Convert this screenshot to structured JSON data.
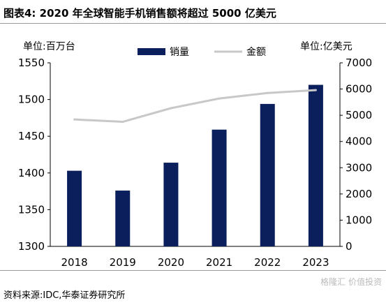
{
  "title": "图表4:   2020 年全球智能手机销售额将超过 5000 亿美元",
  "source": "资料来源:IDC,华泰证券研究所",
  "watermark": "格隆汇 价值投资",
  "colors": {
    "bar": "#0b1f5c",
    "line": "#c8c8c8",
    "axis": "#000000",
    "text": "#000000"
  },
  "chart_data": {
    "type": "bar+line",
    "categories": [
      "2018",
      "2019",
      "2020",
      "2021",
      "2022",
      "2023"
    ],
    "series": [
      {
        "name": "销量",
        "type": "bar",
        "axis": "left",
        "values": [
          1403,
          1376,
          1414,
          1459,
          1494,
          1520
        ]
      },
      {
        "name": "金额",
        "type": "line",
        "axis": "right",
        "values": [
          4840,
          4750,
          5270,
          5640,
          5850,
          5960
        ]
      }
    ],
    "left_axis": {
      "unit_label": "单位:百万台",
      "ylim": [
        1300,
        1550
      ],
      "ticks": [
        1300,
        1350,
        1400,
        1450,
        1500,
        1550
      ]
    },
    "right_axis": {
      "unit_label": "单位:亿美元",
      "ylim": [
        0,
        7000
      ],
      "ticks": [
        0,
        1000,
        2000,
        3000,
        4000,
        5000,
        6000,
        7000
      ]
    },
    "legend_position": "top-center",
    "grid": false
  }
}
